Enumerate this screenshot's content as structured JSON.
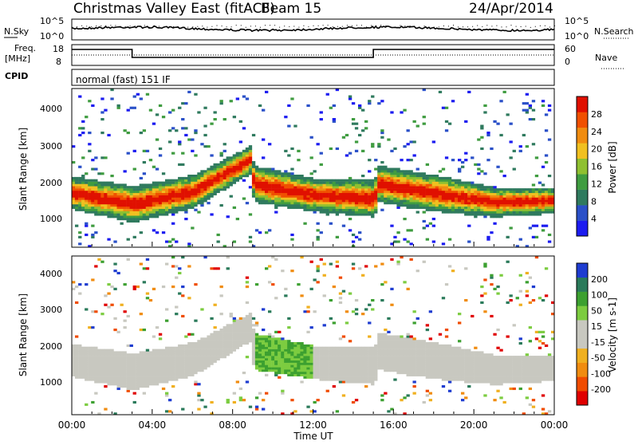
{
  "header": {
    "station": "Christmas Valley East (fitACF)",
    "beam": "Beam 15",
    "date": "24/Apr/2014"
  },
  "noise_panel": {
    "left_label": "N.Sky",
    "left_ticks": [
      "10^5",
      "10^0"
    ],
    "right_label": "N.Search",
    "right_ticks": [
      "10^5",
      "10^0"
    ]
  },
  "freq_panel": {
    "left_label_line1": "Freq.",
    "left_label_line2": "[MHz]",
    "left_ticks": [
      "18",
      "8"
    ],
    "right_label": "Nave",
    "right_ticks": [
      "60",
      "0"
    ]
  },
  "cpid_panel": {
    "label": "CPID",
    "text": "normal (fast) 151 IF"
  },
  "colors": {
    "power_scale": [
      "#1c1cf0",
      "#2a50c8",
      "#2f7a5e",
      "#3f9c40",
      "#8fc030",
      "#f0c020",
      "#f08c10",
      "#f05000",
      "#e01000"
    ],
    "velocity_scale": [
      "#e00000",
      "#f04c00",
      "#f08c10",
      "#f0b020",
      "#c8c8c0",
      "#c8c8c0",
      "#7ccc40",
      "#3ca030",
      "#2a7a5a",
      "#1e3cd0"
    ]
  },
  "chart_data": [
    {
      "type": "heatmap",
      "quantity": "Power",
      "ylabel": "Slant Range [km]",
      "ylim": [
        180,
        4500
      ],
      "y_ticks": [
        "4000",
        "3000",
        "2000",
        "1000"
      ],
      "colorbar_label": "Power [dB]",
      "colorbar_ticks": [
        "28",
        "24",
        "20",
        "16",
        "12",
        "8",
        "4"
      ],
      "xlim_hours": [
        0,
        24
      ],
      "grid": false,
      "bands": [
        {
          "name": "main",
          "ranges": [
            [
              0,
              1650,
              450
            ],
            [
              3,
              1350,
              500
            ],
            [
              6,
              1700,
              450
            ],
            [
              8.8,
              2550,
              380
            ],
            [
              9,
              1900,
              500
            ],
            [
              12,
              1600,
              450
            ],
            [
              15,
              1500,
              500
            ],
            [
              15.2,
              1900,
              500
            ],
            [
              18,
              1650,
              500
            ],
            [
              21,
              1400,
              400
            ],
            [
              24,
              1450,
              350
            ]
          ]
        }
      ]
    },
    {
      "type": "heatmap",
      "quantity": "Velocity",
      "ylabel": "Slant Range [km]",
      "ylim": [
        180,
        4500
      ],
      "y_ticks": [
        "4000",
        "3000",
        "2000",
        "1000"
      ],
      "colorbar_label": "Velocity [m s-1]",
      "colorbar_ticks": [
        "200",
        "100",
        "50",
        "15",
        "-15",
        "-50",
        "-100",
        "-200"
      ],
      "xlim_hours": [
        0,
        24
      ],
      "x_ticks": [
        "00:00",
        "04:00",
        "08:00",
        "12:00",
        "16:00",
        "20:00",
        "00:00"
      ],
      "xlabel": "Time UT",
      "grid": false
    }
  ]
}
